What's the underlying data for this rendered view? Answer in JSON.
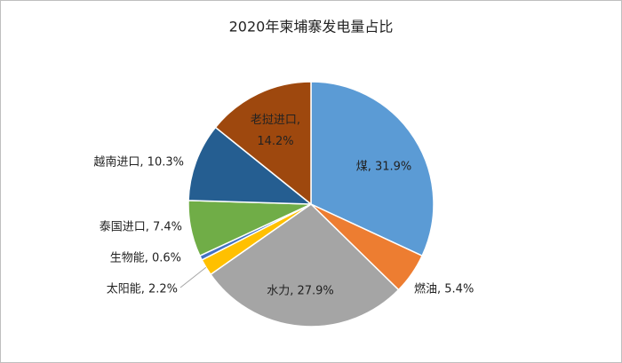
{
  "chart_data": {
    "type": "pie",
    "title": "2020年柬埔寨发电量占比",
    "values": [
      31.9,
      5.4,
      27.9,
      2.2,
      0.6,
      7.4,
      10.3,
      14.2
    ],
    "value_labels": [
      "煤, 31.9%",
      "燃油, 5.4%",
      "水力, 27.9%",
      "太阳能, 2.2%",
      "生物能, 0.6%",
      "泰国进口, 7.4%",
      "越南进口, 10.3%",
      "老挝进口, 14.2%"
    ],
    "colors": [
      "#5b9bd5",
      "#ed7d31",
      "#a5a5a5",
      "#ffc000",
      "#4472c4",
      "#70ad47",
      "#255e91",
      "#9e480e"
    ]
  }
}
